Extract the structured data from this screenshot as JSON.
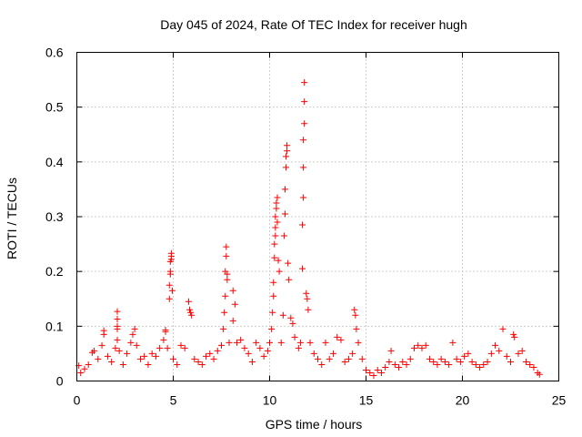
{
  "chart_data": {
    "type": "scatter",
    "title": "Day 045 of 2024, Rate Of TEC Index for receiver hugh",
    "xlabel": "GPS time / hours",
    "ylabel": "ROTI / TECUs",
    "xlim": [
      0,
      25
    ],
    "ylim": [
      0,
      0.6
    ],
    "xticks": [
      0,
      5,
      10,
      15,
      20,
      25
    ],
    "yticks": [
      0,
      0.1,
      0.2,
      0.3,
      0.4,
      0.5,
      0.6
    ],
    "xtick_labels": [
      "0",
      "5",
      "10",
      "15",
      "20",
      "25"
    ],
    "ytick_labels": [
      "0",
      "0.1",
      "0.2",
      "0.3",
      "0.4",
      "0.5",
      "0.6"
    ],
    "grid": true,
    "marker": "+",
    "color": "#ff0000",
    "series": [
      {
        "name": "ROTI",
        "points": [
          [
            0.1,
            0.028
          ],
          [
            0.2,
            0.015
          ],
          [
            0.4,
            0.022
          ],
          [
            0.6,
            0.03
          ],
          [
            0.8,
            0.052
          ],
          [
            0.9,
            0.055
          ],
          [
            1.1,
            0.04
          ],
          [
            1.3,
            0.065
          ],
          [
            1.4,
            0.085
          ],
          [
            1.4,
            0.092
          ],
          [
            1.6,
            0.045
          ],
          [
            1.8,
            0.035
          ],
          [
            2.0,
            0.06
          ],
          [
            2.1,
            0.1
          ],
          [
            2.1,
            0.095
          ],
          [
            2.1,
            0.113
          ],
          [
            2.1,
            0.127
          ],
          [
            2.1,
            0.075
          ],
          [
            2.2,
            0.055
          ],
          [
            2.4,
            0.03
          ],
          [
            2.6,
            0.05
          ],
          [
            2.8,
            0.07
          ],
          [
            2.9,
            0.085
          ],
          [
            3.0,
            0.095
          ],
          [
            3.1,
            0.065
          ],
          [
            3.3,
            0.04
          ],
          [
            3.5,
            0.045
          ],
          [
            3.7,
            0.03
          ],
          [
            3.9,
            0.05
          ],
          [
            4.1,
            0.045
          ],
          [
            4.3,
            0.06
          ],
          [
            4.5,
            0.075
          ],
          [
            4.6,
            0.09
          ],
          [
            4.6,
            0.093
          ],
          [
            4.7,
            0.06
          ],
          [
            4.8,
            0.15
          ],
          [
            4.8,
            0.175
          ],
          [
            4.85,
            0.195
          ],
          [
            4.85,
            0.218
          ],
          [
            4.9,
            0.228
          ],
          [
            4.9,
            0.233
          ],
          [
            4.9,
            0.222
          ],
          [
            4.85,
            0.2
          ],
          [
            4.95,
            0.165
          ],
          [
            5.0,
            0.04
          ],
          [
            5.2,
            0.03
          ],
          [
            5.4,
            0.065
          ],
          [
            5.6,
            0.06
          ],
          [
            5.8,
            0.145
          ],
          [
            5.85,
            0.13
          ],
          [
            5.9,
            0.125
          ],
          [
            5.95,
            0.12
          ],
          [
            6.1,
            0.04
          ],
          [
            6.3,
            0.035
          ],
          [
            6.5,
            0.03
          ],
          [
            6.7,
            0.045
          ],
          [
            6.9,
            0.05
          ],
          [
            7.1,
            0.04
          ],
          [
            7.3,
            0.055
          ],
          [
            7.5,
            0.065
          ],
          [
            7.6,
            0.095
          ],
          [
            7.65,
            0.125
          ],
          [
            7.7,
            0.155
          ],
          [
            7.7,
            0.2
          ],
          [
            7.75,
            0.228
          ],
          [
            7.75,
            0.245
          ],
          [
            7.8,
            0.195
          ],
          [
            7.8,
            0.185
          ],
          [
            7.9,
            0.07
          ],
          [
            8.1,
            0.11
          ],
          [
            8.1,
            0.165
          ],
          [
            8.2,
            0.14
          ],
          [
            8.3,
            0.07
          ],
          [
            8.5,
            0.075
          ],
          [
            8.7,
            0.06
          ],
          [
            8.9,
            0.05
          ],
          [
            9.1,
            0.035
          ],
          [
            9.3,
            0.07
          ],
          [
            9.5,
            0.06
          ],
          [
            9.7,
            0.045
          ],
          [
            9.9,
            0.055
          ],
          [
            10.0,
            0.07
          ],
          [
            10.1,
            0.095
          ],
          [
            10.15,
            0.125
          ],
          [
            10.2,
            0.155
          ],
          [
            10.2,
            0.18
          ],
          [
            10.25,
            0.225
          ],
          [
            10.25,
            0.25
          ],
          [
            10.3,
            0.265
          ],
          [
            10.3,
            0.28
          ],
          [
            10.3,
            0.3
          ],
          [
            10.35,
            0.315
          ],
          [
            10.35,
            0.325
          ],
          [
            10.4,
            0.335
          ],
          [
            10.4,
            0.29
          ],
          [
            10.45,
            0.22
          ],
          [
            10.5,
            0.2
          ],
          [
            10.6,
            0.07
          ],
          [
            10.7,
            0.12
          ],
          [
            10.75,
            0.265
          ],
          [
            10.8,
            0.305
          ],
          [
            10.8,
            0.35
          ],
          [
            10.85,
            0.39
          ],
          [
            10.85,
            0.41
          ],
          [
            10.9,
            0.42
          ],
          [
            10.9,
            0.43
          ],
          [
            10.95,
            0.215
          ],
          [
            11.0,
            0.185
          ],
          [
            11.1,
            0.115
          ],
          [
            11.2,
            0.105
          ],
          [
            11.3,
            0.08
          ],
          [
            11.5,
            0.06
          ],
          [
            11.6,
            0.07
          ],
          [
            11.7,
            0.205
          ],
          [
            11.7,
            0.285
          ],
          [
            11.75,
            0.335
          ],
          [
            11.75,
            0.39
          ],
          [
            11.75,
            0.44
          ],
          [
            11.8,
            0.47
          ],
          [
            11.8,
            0.51
          ],
          [
            11.8,
            0.545
          ],
          [
            11.9,
            0.16
          ],
          [
            11.95,
            0.15
          ],
          [
            12.0,
            0.13
          ],
          [
            12.1,
            0.07
          ],
          [
            12.3,
            0.05
          ],
          [
            12.5,
            0.04
          ],
          [
            12.7,
            0.03
          ],
          [
            12.9,
            0.07
          ],
          [
            13.1,
            0.04
          ],
          [
            13.3,
            0.05
          ],
          [
            13.5,
            0.08
          ],
          [
            13.7,
            0.075
          ],
          [
            13.9,
            0.035
          ],
          [
            14.1,
            0.04
          ],
          [
            14.3,
            0.05
          ],
          [
            14.4,
            0.13
          ],
          [
            14.45,
            0.12
          ],
          [
            14.5,
            0.095
          ],
          [
            14.6,
            0.07
          ],
          [
            14.8,
            0.04
          ],
          [
            15.0,
            0.02
          ],
          [
            15.2,
            0.015
          ],
          [
            15.4,
            0.01
          ],
          [
            15.6,
            0.02
          ],
          [
            15.8,
            0.015
          ],
          [
            16.0,
            0.025
          ],
          [
            16.2,
            0.035
          ],
          [
            16.3,
            0.055
          ],
          [
            16.5,
            0.03
          ],
          [
            16.7,
            0.025
          ],
          [
            16.9,
            0.035
          ],
          [
            17.1,
            0.03
          ],
          [
            17.3,
            0.04
          ],
          [
            17.5,
            0.06
          ],
          [
            17.7,
            0.065
          ],
          [
            17.9,
            0.06
          ],
          [
            18.1,
            0.065
          ],
          [
            18.3,
            0.04
          ],
          [
            18.5,
            0.035
          ],
          [
            18.7,
            0.03
          ],
          [
            18.9,
            0.04
          ],
          [
            19.1,
            0.035
          ],
          [
            19.3,
            0.03
          ],
          [
            19.5,
            0.07
          ],
          [
            19.7,
            0.04
          ],
          [
            19.9,
            0.035
          ],
          [
            20.1,
            0.045
          ],
          [
            20.3,
            0.05
          ],
          [
            20.5,
            0.035
          ],
          [
            20.7,
            0.03
          ],
          [
            20.9,
            0.025
          ],
          [
            21.1,
            0.03
          ],
          [
            21.3,
            0.035
          ],
          [
            21.5,
            0.05
          ],
          [
            21.7,
            0.065
          ],
          [
            21.9,
            0.055
          ],
          [
            22.1,
            0.095
          ],
          [
            22.3,
            0.045
          ],
          [
            22.5,
            0.035
          ],
          [
            22.65,
            0.085
          ],
          [
            22.7,
            0.08
          ],
          [
            22.9,
            0.05
          ],
          [
            23.1,
            0.055
          ],
          [
            23.3,
            0.035
          ],
          [
            23.5,
            0.03
          ],
          [
            23.7,
            0.025
          ],
          [
            23.9,
            0.015
          ],
          [
            24.0,
            0.012
          ]
        ]
      }
    ]
  }
}
